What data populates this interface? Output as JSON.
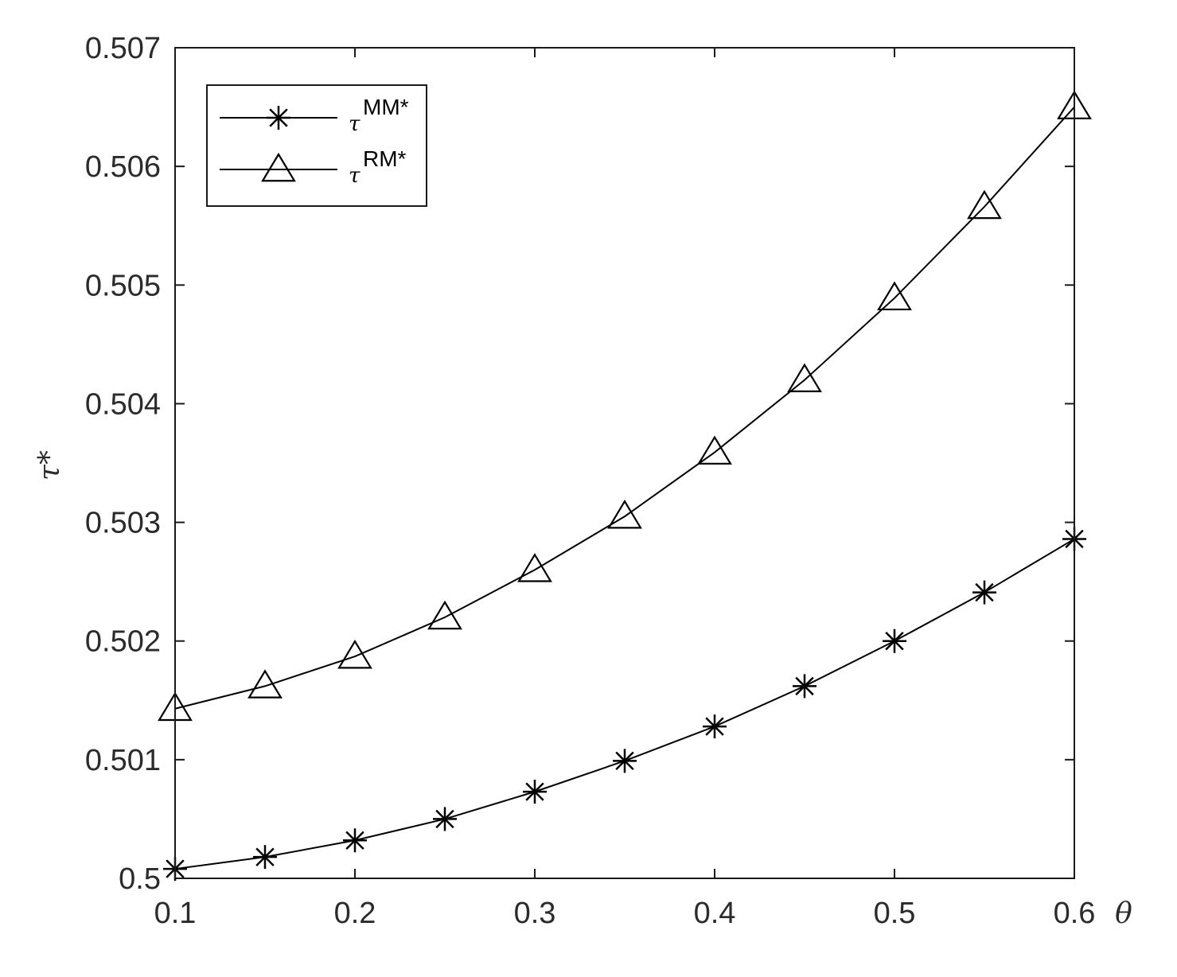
{
  "chart_data": {
    "type": "line",
    "x": [
      0.1,
      0.15,
      0.2,
      0.25,
      0.3,
      0.35,
      0.4,
      0.45,
      0.5,
      0.55,
      0.6
    ],
    "xlim": [
      0.1,
      0.6
    ],
    "ylim": [
      0.5,
      0.507
    ],
    "x_ticks": [
      "0.1",
      "0.2",
      "0.3",
      "0.4",
      "0.5",
      "0.6"
    ],
    "y_ticks": [
      "0.5",
      "0.501",
      "0.502",
      "0.503",
      "0.504",
      "0.505",
      "0.506",
      "0.507"
    ],
    "xlabel": "θ",
    "ylabel": "τ*",
    "grid": false,
    "legend_position": "top-left",
    "series": [
      {
        "name_base": "τ",
        "name_sup": "MM*",
        "marker": "asterisk",
        "color": "#000000",
        "values": [
          0.50008,
          0.50018,
          0.50032,
          0.5005,
          0.50073,
          0.50099,
          0.50128,
          0.50162,
          0.502,
          0.50241,
          0.50286
        ]
      },
      {
        "name_base": "τ",
        "name_sup": "RM*",
        "marker": "triangle",
        "color": "#000000",
        "values": [
          0.50143,
          0.50162,
          0.50187,
          0.5022,
          0.5026,
          0.50305,
          0.50359,
          0.5042,
          0.50489,
          0.50566,
          0.5065
        ]
      }
    ]
  }
}
